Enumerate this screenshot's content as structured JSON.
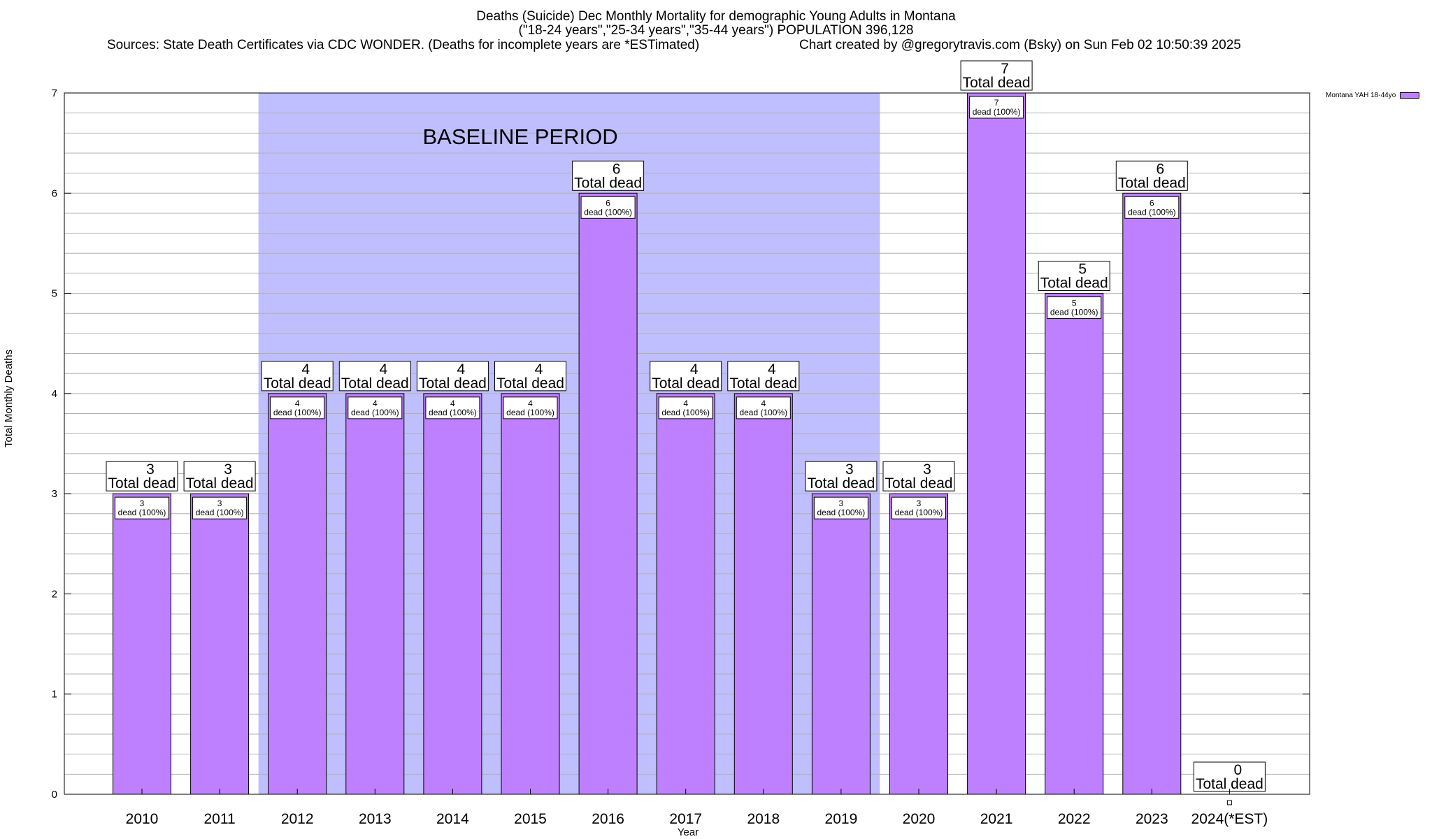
{
  "title": {
    "line1": "Deaths (Suicide) Dec Monthly Mortality for demographic Young Adults in Montana",
    "line2": "(\"18-24 years\",\"25-34 years\",\"35-44 years\") POPULATION 396,128",
    "sources": "Sources: State Death Certificates via CDC WONDER. (Deaths for incomplete years are *ESTimated)",
    "credit": "Chart created by @gregorytravis.com (Bsky) on Sun Feb 02 10:50:39 2025"
  },
  "colors": {
    "bar": "#bf80ff",
    "baseline": "#bfbfff",
    "grid": "#b0b0b0"
  },
  "chart_data": {
    "type": "bar",
    "title": "Deaths (Suicide) Dec Monthly Mortality for demographic Young Adults in Montana",
    "xlabel": "Year",
    "ylabel": "Total Monthly Deaths",
    "ylim": [
      0,
      7
    ],
    "yticks": [
      0,
      1,
      2,
      3,
      4,
      5,
      6,
      7
    ],
    "grid": true,
    "legend": {
      "position": "top-right",
      "label": "Montana YAH 18-44yo"
    },
    "categories": [
      "2010",
      "2011",
      "2012",
      "2013",
      "2014",
      "2015",
      "2016",
      "2017",
      "2018",
      "2019",
      "2020",
      "2021",
      "2022",
      "2023",
      "2024(*EST)"
    ],
    "series": [
      {
        "name": "Montana YAH 18-44yo",
        "values": [
          3,
          3,
          4,
          4,
          4,
          4,
          6,
          4,
          4,
          3,
          3,
          7,
          5,
          6,
          0
        ]
      }
    ],
    "total_label": "Total dead",
    "inner_label": "dead (100%)",
    "baseline": {
      "label": "BASELINE PERIOD",
      "start": "2012",
      "end": "2019"
    }
  }
}
